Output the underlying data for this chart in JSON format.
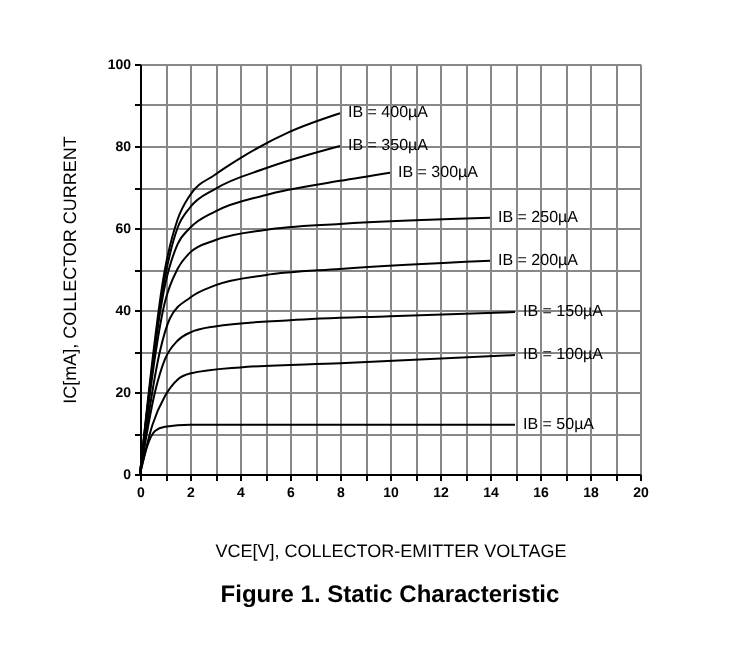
{
  "chart_data": {
    "type": "line",
    "title": "Figure 1. Static Characteristic",
    "xlabel": "VCE[V], COLLECTOR-EMITTER VOLTAGE",
    "ylabel": "IC[mA], COLLECTOR CURRENT",
    "xlim": [
      0,
      20
    ],
    "ylim": [
      0,
      100
    ],
    "xticks": [
      0,
      {
        "value": 1,
        "label": null
      },
      2,
      {
        "value": 3,
        "label": null
      },
      4,
      {
        "value": 5,
        "label": null
      },
      6,
      {
        "value": 7,
        "label": null
      },
      8,
      {
        "value": 9,
        "label": null
      },
      10,
      {
        "value": 11,
        "label": null
      },
      12,
      {
        "value": 13,
        "label": null
      },
      14,
      {
        "value": 15,
        "label": null
      },
      16,
      {
        "value": 17,
        "label": null
      },
      18,
      {
        "value": 19,
        "label": null
      },
      20
    ],
    "yticks": [
      0,
      {
        "value": 10,
        "label": null
      },
      20,
      {
        "value": 30,
        "label": null
      },
      40,
      {
        "value": 50,
        "label": null
      },
      60,
      {
        "value": 70,
        "label": null
      },
      80,
      {
        "value": 90,
        "label": null
      },
      100
    ],
    "grid": true,
    "legend": false,
    "marker": "none",
    "line_style": "solid",
    "series": [
      {
        "name": "IB = 400µA",
        "color": "#000000",
        "x": [
          0,
          1,
          1.5,
          2,
          3,
          4,
          6,
          8
        ],
        "values": [
          0,
          50,
          62,
          68,
          73,
          77,
          83.5,
          88
        ]
      },
      {
        "name": "IB = 350µA",
        "color": "#000000",
        "x": [
          0,
          1,
          1.5,
          2,
          3,
          5,
          8
        ],
        "values": [
          0,
          48,
          60,
          65,
          69.5,
          74.5,
          80
        ]
      },
      {
        "name": "IB = 300µA",
        "color": "#000000",
        "x": [
          0,
          1,
          1.5,
          2,
          3,
          5,
          8,
          10
        ],
        "values": [
          0,
          46,
          56,
          60,
          64,
          68,
          71.5,
          73.5
        ]
      },
      {
        "name": "IB = 250µA",
        "color": "#000000",
        "x": [
          0,
          1,
          1.5,
          2,
          3,
          5,
          8,
          14
        ],
        "values": [
          0,
          42,
          50,
          54,
          57,
          59.5,
          61,
          62.5
        ]
      },
      {
        "name": "IB = 200µA",
        "color": "#000000",
        "x": [
          0,
          0.8,
          1.2,
          2,
          3,
          5,
          8,
          14
        ],
        "values": [
          0,
          30,
          38,
          43,
          46,
          48.5,
          50,
          52
        ]
      },
      {
        "name": "IB = 150µA",
        "color": "#000000",
        "x": [
          0,
          0.6,
          1,
          1.5,
          2,
          3,
          6,
          10,
          15
        ],
        "values": [
          0,
          20,
          28,
          32.5,
          34.5,
          36,
          37.5,
          38.5,
          39.5
        ]
      },
      {
        "name": "IB = 100µA",
        "color": "#000000",
        "x": [
          0,
          0.5,
          1,
          1.5,
          2,
          4,
          8,
          15
        ],
        "values": [
          0,
          12,
          19,
          23,
          24.5,
          26,
          27,
          29
        ]
      },
      {
        "name": "IB = 50µA",
        "color": "#000000",
        "x": [
          0,
          0.3,
          0.6,
          1,
          2,
          15
        ],
        "values": [
          0,
          7,
          10.5,
          11.5,
          12,
          12
        ]
      }
    ]
  }
}
